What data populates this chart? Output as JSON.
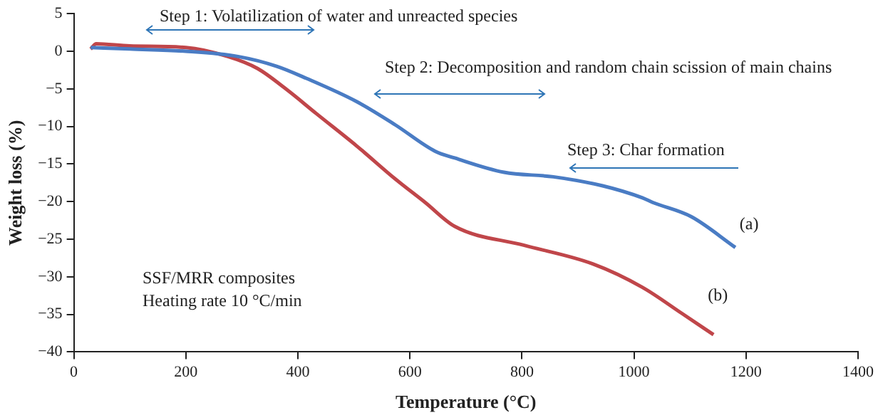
{
  "chart_data": {
    "type": "line",
    "xlabel": "Temperature (°C)",
    "ylabel": "Weight loss (%)",
    "xlim": [
      0,
      1400
    ],
    "xticks": [
      0,
      200,
      400,
      600,
      800,
      1000,
      1200,
      1400
    ],
    "ylim": [
      -40,
      5
    ],
    "yticks": [
      5,
      0,
      -5,
      -10,
      -15,
      -20,
      -25,
      -30,
      -35,
      -40
    ],
    "marker": "none",
    "line_style": "solid",
    "legend": false,
    "series": [
      {
        "name": "(a)",
        "color": "#4a7cc4",
        "x": [
          30,
          100,
          200,
          293,
          362,
          415,
          505,
          574,
          645,
          680,
          768,
          856,
          944,
          1015,
          1033,
          1102,
          1181
        ],
        "values": [
          0.5,
          0.3,
          0,
          -0.7,
          -2,
          -3.6,
          -6.7,
          -9.8,
          -13.3,
          -14.2,
          -16.1,
          -16.7,
          -17.9,
          -19.5,
          -20.1,
          -22,
          -26.1
        ]
      },
      {
        "name": "(b)",
        "color": "#c0464a",
        "x": [
          30,
          40,
          100,
          200,
          275,
          328,
          380,
          433,
          505,
          574,
          627,
          680,
          803,
          927,
          1015,
          1086,
          1142
        ],
        "values": [
          0.3,
          1,
          0.7,
          0.5,
          -0.7,
          -2.3,
          -5.1,
          -8.3,
          -12.6,
          -17,
          -20.1,
          -23.3,
          -25.8,
          -28.3,
          -31.4,
          -34.9,
          -37.7
        ]
      }
    ],
    "annotations": [
      "Step 1: Volatilization of water and unreacted species",
      "Step 2: Decomposition and random chain scission of main chains",
      "Step 3: Char formation",
      "SSF/MRR composites",
      "Heating rate 10 °C/min"
    ]
  }
}
